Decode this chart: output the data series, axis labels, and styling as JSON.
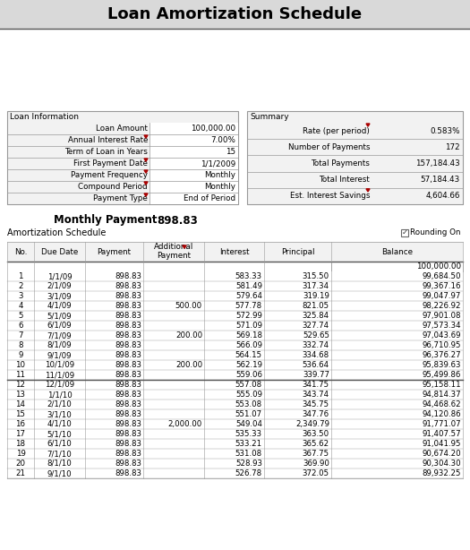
{
  "title": "Loan Amortization Schedule",
  "title_fontsize": 13,
  "bg_color": "#d9d9d9",
  "white": "#ffffff",
  "light_gray": "#f2f2f2",
  "border_color": "#999999",
  "dark_border": "#555555",
  "loan_info_label": "Loan Information",
  "loan_rows": [
    [
      "Loan Amount",
      "100,000.00"
    ],
    [
      "Annual Interest Rate",
      "7.00%"
    ],
    [
      "Term of Loan in Years",
      "15"
    ],
    [
      "First Payment Date",
      "1/1/2009"
    ],
    [
      "Payment Frequency",
      "Monthly"
    ],
    [
      "Compound Period",
      "Monthly"
    ],
    [
      "Payment Type",
      "End of Period"
    ]
  ],
  "summary_label": "Summary",
  "summary_rows": [
    [
      "Rate (per period)",
      "0.583%"
    ],
    [
      "Number of Payments",
      "172"
    ],
    [
      "Total Payments",
      "157,184.43"
    ],
    [
      "Total Interest",
      "57,184.43"
    ],
    [
      "Est. Interest Savings",
      "4,604.66"
    ]
  ],
  "monthly_payment_label": "Monthly Payment",
  "monthly_payment_value": "898.83",
  "amort_label": "Amortization Schedule",
  "rounding_label": "Rounding On",
  "col_headers": [
    "No.",
    "Due Date",
    "Payment",
    "Additional\nPayment",
    "Interest",
    "Principal",
    "Balance"
  ],
  "initial_balance": "100,000.00",
  "table_rows": [
    [
      "1",
      "1/1/09",
      "898.83",
      "",
      "583.33",
      "315.50",
      "99,684.50"
    ],
    [
      "2",
      "2/1/09",
      "898.83",
      "",
      "581.49",
      "317.34",
      "99,367.16"
    ],
    [
      "3",
      "3/1/09",
      "898.83",
      "",
      "579.64",
      "319.19",
      "99,047.97"
    ],
    [
      "4",
      "4/1/09",
      "898.83",
      "500.00",
      "577.78",
      "821.05",
      "98,226.92"
    ],
    [
      "5",
      "5/1/09",
      "898.83",
      "",
      "572.99",
      "325.84",
      "97,901.08"
    ],
    [
      "6",
      "6/1/09",
      "898.83",
      "",
      "571.09",
      "327.74",
      "97,573.34"
    ],
    [
      "7",
      "7/1/09",
      "898.83",
      "200.00",
      "569.18",
      "529.65",
      "97,043.69"
    ],
    [
      "8",
      "8/1/09",
      "898.83",
      "",
      "566.09",
      "332.74",
      "96,710.95"
    ],
    [
      "9",
      "9/1/09",
      "898.83",
      "",
      "564.15",
      "334.68",
      "96,376.27"
    ],
    [
      "10",
      "10/1/09",
      "898.83",
      "200.00",
      "562.19",
      "536.64",
      "95,839.63"
    ],
    [
      "11",
      "11/1/09",
      "898.83",
      "",
      "559.06",
      "339.77",
      "95,499.86"
    ],
    [
      "12",
      "12/1/09",
      "898.83",
      "",
      "557.08",
      "341.75",
      "95,158.11"
    ],
    [
      "13",
      "1/1/10",
      "898.83",
      "",
      "555.09",
      "343.74",
      "94,814.37"
    ],
    [
      "14",
      "2/1/10",
      "898.83",
      "",
      "553.08",
      "345.75",
      "94,468.62"
    ],
    [
      "15",
      "3/1/10",
      "898.83",
      "",
      "551.07",
      "347.76",
      "94,120.86"
    ],
    [
      "16",
      "4/1/10",
      "898.83",
      "2,000.00",
      "549.04",
      "2,349.79",
      "91,771.07"
    ],
    [
      "17",
      "5/1/10",
      "898.83",
      "",
      "535.33",
      "363.50",
      "91,407.57"
    ],
    [
      "18",
      "6/1/10",
      "898.83",
      "",
      "533.21",
      "365.62",
      "91,041.95"
    ],
    [
      "19",
      "7/1/10",
      "898.83",
      "",
      "531.08",
      "367.75",
      "90,674.20"
    ],
    [
      "20",
      "8/1/10",
      "898.83",
      "",
      "528.93",
      "369.90",
      "90,304.30"
    ],
    [
      "21",
      "9/1/10",
      "898.83",
      "",
      "526.78",
      "372.05",
      "89,932.25"
    ]
  ],
  "year_break_after_row": 11
}
